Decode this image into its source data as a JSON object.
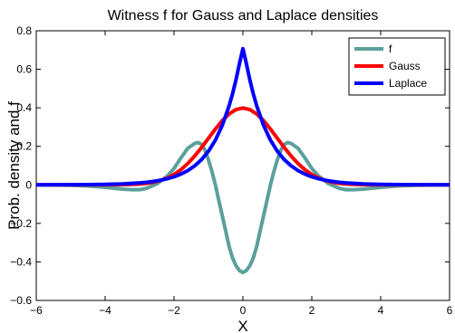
{
  "chart_data": {
    "type": "line",
    "title": "Witness f for Gauss and Laplace densities",
    "xlabel": "X",
    "ylabel": "Prob. density and f",
    "xlim": [
      -6,
      6
    ],
    "ylim": [
      -0.6,
      0.8
    ],
    "x_ticks": [
      -6,
      -4,
      -2,
      0,
      2,
      4,
      6
    ],
    "x_tick_labels": [
      "−6",
      "−4",
      "−2",
      "0",
      "2",
      "4",
      "6"
    ],
    "y_ticks": [
      -0.6,
      -0.4,
      -0.2,
      0,
      0.2,
      0.4,
      0.6,
      0.8
    ],
    "y_tick_labels": [
      "−0.6",
      "−0.4",
      "−0.2",
      "0",
      "0.2",
      "0.4",
      "0.6",
      "0.8"
    ],
    "grid": false,
    "legend_position": "top-right",
    "series": [
      {
        "name": "f",
        "color": "#5aa09c",
        "x": [
          -6,
          -5,
          -4.5,
          -4,
          -3.5,
          -3.2,
          -3,
          -2.8,
          -2.5,
          -2.2,
          -2,
          -1.8,
          -1.6,
          -1.4,
          -1.3,
          -1.2,
          -1.1,
          -1,
          -0.9,
          -0.8,
          -0.7,
          -0.6,
          -0.5,
          -0.4,
          -0.3,
          -0.2,
          -0.1,
          0,
          0.1,
          0.2,
          0.3,
          0.4,
          0.5,
          0.6,
          0.7,
          0.8,
          0.9,
          1,
          1.1,
          1.2,
          1.3,
          1.4,
          1.6,
          1.8,
          2,
          2.2,
          2.5,
          2.8,
          3,
          3.2,
          3.5,
          4,
          4.5,
          5,
          6
        ],
        "y": [
          0,
          -0.002,
          -0.006,
          -0.013,
          -0.022,
          -0.025,
          -0.025,
          -0.018,
          0.005,
          0.045,
          0.085,
          0.14,
          0.19,
          0.215,
          0.22,
          0.21,
          0.18,
          0.13,
          0.07,
          0.0,
          -0.08,
          -0.16,
          -0.24,
          -0.32,
          -0.38,
          -0.42,
          -0.445,
          -0.455,
          -0.445,
          -0.42,
          -0.38,
          -0.32,
          -0.24,
          -0.16,
          -0.08,
          0.0,
          0.07,
          0.13,
          0.18,
          0.21,
          0.22,
          0.215,
          0.19,
          0.14,
          0.085,
          0.045,
          0.005,
          -0.018,
          -0.025,
          -0.025,
          -0.022,
          -0.013,
          -0.006,
          -0.002,
          0
        ]
      },
      {
        "name": "Gauss",
        "color": "#ff0000",
        "x": [
          -6,
          -5,
          -4.5,
          -4,
          -3.5,
          -3,
          -2.8,
          -2.6,
          -2.4,
          -2.2,
          -2,
          -1.8,
          -1.6,
          -1.4,
          -1.2,
          -1,
          -0.8,
          -0.6,
          -0.4,
          -0.2,
          0,
          0.2,
          0.4,
          0.6,
          0.8,
          1,
          1.2,
          1.4,
          1.6,
          1.8,
          2,
          2.2,
          2.4,
          2.6,
          2.8,
          3,
          3.5,
          4,
          4.5,
          5,
          6
        ],
        "y": [
          0,
          0,
          0,
          0.0001,
          0.0009,
          0.0044,
          0.0079,
          0.0136,
          0.0224,
          0.0355,
          0.054,
          0.079,
          0.1109,
          0.1497,
          0.1942,
          0.242,
          0.2897,
          0.3332,
          0.3683,
          0.391,
          0.3989,
          0.391,
          0.3683,
          0.3332,
          0.2897,
          0.242,
          0.1942,
          0.1497,
          0.1109,
          0.079,
          0.054,
          0.0355,
          0.0224,
          0.0136,
          0.0079,
          0.0044,
          0.0009,
          0.0001,
          0,
          0,
          0
        ]
      },
      {
        "name": "Laplace",
        "color": "#0000ff",
        "x": [
          -6,
          -5,
          -4.5,
          -4,
          -3.5,
          -3,
          -2.8,
          -2.6,
          -2.4,
          -2.2,
          -2,
          -1.8,
          -1.6,
          -1.4,
          -1.2,
          -1,
          -0.8,
          -0.6,
          -0.4,
          -0.3,
          -0.2,
          -0.1,
          0,
          0.1,
          0.2,
          0.3,
          0.4,
          0.6,
          0.8,
          1,
          1.2,
          1.4,
          1.6,
          1.8,
          2,
          2.2,
          2.4,
          2.6,
          2.8,
          3,
          3.5,
          4,
          4.5,
          5,
          6
        ],
        "y": [
          0.0001,
          0.0006,
          0.0012,
          0.0024,
          0.005,
          0.0101,
          0.0134,
          0.0178,
          0.0237,
          0.0315,
          0.0419,
          0.0558,
          0.0742,
          0.0987,
          0.1312,
          0.1745,
          0.2321,
          0.3087,
          0.4106,
          0.4735,
          0.5461,
          0.6298,
          0.7071,
          0.6298,
          0.5461,
          0.4735,
          0.4106,
          0.3087,
          0.2321,
          0.1745,
          0.1312,
          0.0987,
          0.0742,
          0.0558,
          0.0419,
          0.0315,
          0.0237,
          0.0178,
          0.0134,
          0.0101,
          0.005,
          0.0024,
          0.0012,
          0.0006,
          0.0001
        ]
      }
    ]
  }
}
